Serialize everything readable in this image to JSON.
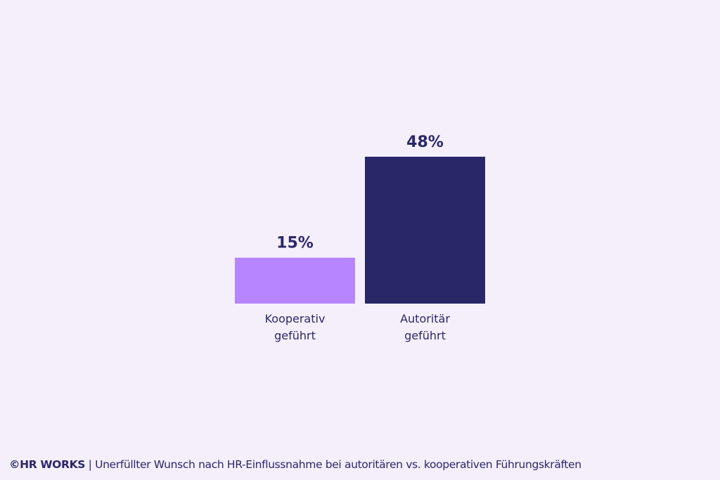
{
  "chart_data": {
    "type": "bar",
    "categories": [
      "Kooperativ\ngeführt",
      "Autoritär\ngeführt"
    ],
    "values": [
      15,
      48
    ],
    "value_labels": [
      "15%",
      "48%"
    ],
    "colors": [
      "#b685ff",
      "#2a2769"
    ],
    "ylim": [
      0,
      48
    ],
    "grid": false,
    "legend": "none"
  },
  "footer": {
    "brand": "©HR WORKS",
    "separator": " | ",
    "caption": "Unerfüllter Wunsch nach HR-Einflussnahme bei autoritären vs. kooperativen Führungskräften"
  },
  "colors": {
    "background": "#f5effb",
    "text": "#2a2769"
  }
}
